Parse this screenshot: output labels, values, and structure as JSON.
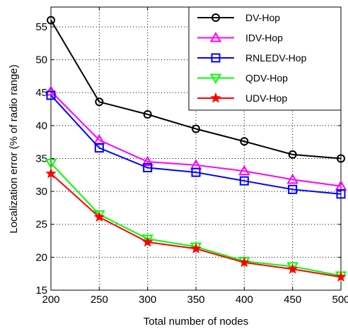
{
  "chart_data": {
    "type": "line",
    "title": "",
    "xlabel": "Total number of nodes",
    "ylabel": "Localization error (% of radio range)",
    "x": [
      200,
      250,
      300,
      350,
      400,
      450,
      500
    ],
    "xlim": [
      200,
      500
    ],
    "ylim": [
      15,
      58
    ],
    "xticks": [
      "200",
      "250",
      "300",
      "350",
      "400",
      "450",
      "500"
    ],
    "yticks": [
      "15",
      "20",
      "25",
      "30",
      "35",
      "40",
      "45",
      "50",
      "55"
    ],
    "grid": true,
    "legend_position": "top-right",
    "series": [
      {
        "name": "DV-Hop",
        "color": "#000000",
        "marker": "circle",
        "values": [
          56.0,
          43.6,
          41.7,
          39.5,
          37.6,
          35.6,
          35.0
        ]
      },
      {
        "name": "IDV-Hop",
        "color": "#ff00ff",
        "marker": "triangle-up",
        "values": [
          45.2,
          37.8,
          34.5,
          34.0,
          33.1,
          31.8,
          30.8
        ]
      },
      {
        "name": "RNLEDV-Hop",
        "color": "#0000ff",
        "marker": "square",
        "values": [
          44.6,
          36.6,
          33.6,
          32.9,
          31.6,
          30.3,
          29.6
        ]
      },
      {
        "name": "QDV-Hop",
        "color": "#00ff00",
        "marker": "triangle-down",
        "values": [
          34.3,
          26.5,
          22.8,
          21.6,
          19.4,
          18.6,
          17.2
        ]
      },
      {
        "name": "UDV-Hop",
        "color": "#ff0000",
        "marker": "star",
        "values": [
          32.7,
          26.1,
          22.3,
          21.3,
          19.2,
          18.2,
          17.0
        ]
      }
    ]
  }
}
